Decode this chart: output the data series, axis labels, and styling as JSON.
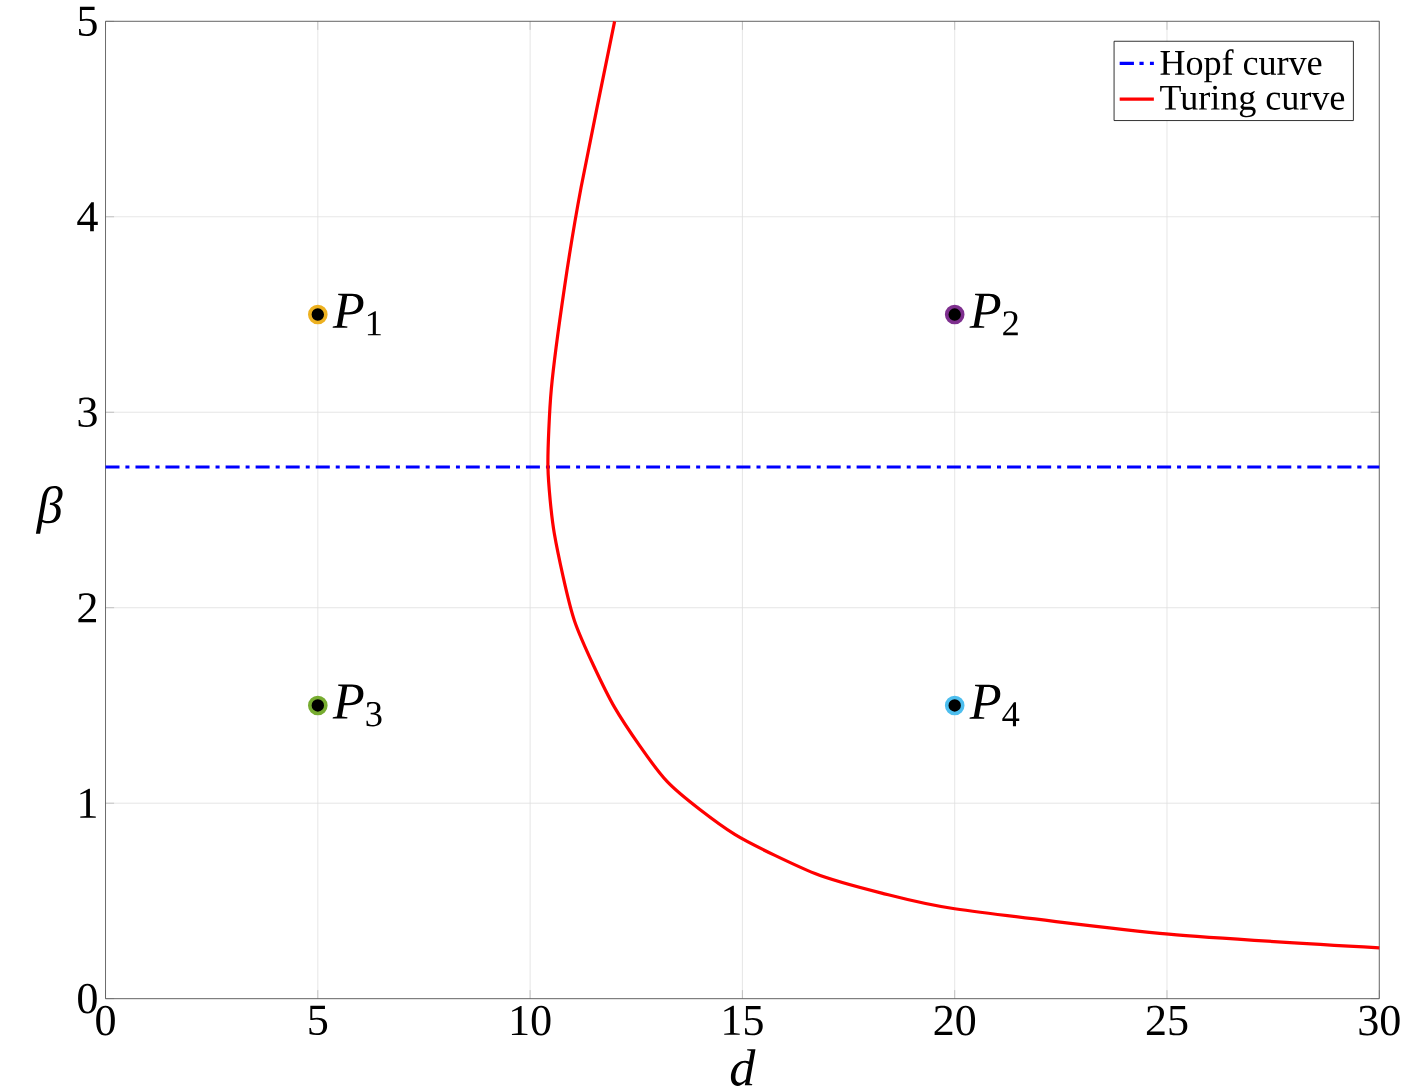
{
  "chart_data": {
    "type": "line",
    "xlabel": "*d*",
    "ylabel": "*β*",
    "xlim": [
      0,
      30
    ],
    "ylim": [
      0,
      5
    ],
    "xticks": [
      0,
      5,
      10,
      15,
      20,
      25,
      30
    ],
    "yticks": [
      0,
      1,
      2,
      3,
      4,
      5
    ],
    "grid": true,
    "legend": "top right",
    "series": [
      {
        "name": "Hopf curve",
        "color": "#0000ff",
        "line_style": "dashdot",
        "x": [
          0,
          30
        ],
        "values": [
          2.72,
          2.72
        ]
      },
      {
        "name": "Turing curve",
        "color": "#ff0000",
        "line_style": "solid",
        "x": [
          11.99,
          11.2,
          10.81,
          10.5,
          10.42,
          10.57,
          11.05,
          11.99,
          13.23,
          14.82,
          16.71,
          18.28,
          20.0,
          25.04,
          30
        ],
        "values": [
          5,
          4.15,
          3.64,
          3.12,
          2.72,
          2.38,
          1.93,
          1.49,
          1.11,
          0.84,
          0.64,
          0.54,
          0.46,
          0.33,
          0.26
        ]
      },
      {
        "name": "*P*$_{1}$",
        "type": "scatter",
        "color": "#edb120",
        "marker": "circle",
        "x": [
          5
        ],
        "values": [
          3.5
        ]
      },
      {
        "name": "*P*$_{2}$",
        "type": "scatter",
        "color": "#7e2f8e",
        "marker": "circle",
        "x": [
          20
        ],
        "values": [
          3.5
        ]
      },
      {
        "name": "*P*$_{3}$",
        "type": "scatter",
        "color": "#77ac30",
        "marker": "circle",
        "x": [
          5
        ],
        "values": [
          1.5
        ]
      },
      {
        "name": "*P*$_{4}$",
        "type": "scatter",
        "color": "#4dbeee",
        "marker": "circle",
        "x": [
          20
        ],
        "values": [
          1.5
        ]
      }
    ]
  }
}
